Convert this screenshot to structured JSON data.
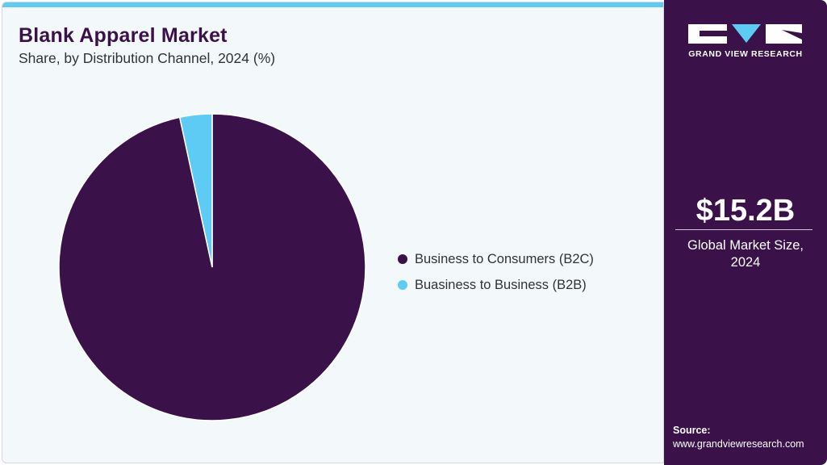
{
  "header": {
    "title": "Blank Apparel Market",
    "subtitle": "Share, by Distribution Channel, 2024 (%)"
  },
  "colors": {
    "b2c": "#3a1249",
    "b2b": "#5ecbf5",
    "accent_bar": "#5ecbf5",
    "sidebar_bg": "#3a1249"
  },
  "legend": [
    {
      "label": "Business to Consumers (B2C)",
      "color": "#3a1249"
    },
    {
      "label": "Buasiness to Business (B2B)",
      "color": "#5ecbf5"
    }
  ],
  "sidebar": {
    "logo_text": "GRAND VIEW RESEARCH",
    "market_value": "$15.2B",
    "market_label_line1": "Global Market Size,",
    "market_label_line2": "2024",
    "source_label": "Source:",
    "source_url": "www.grandviewresearch.com"
  },
  "chart_data": {
    "type": "pie",
    "title": "Blank Apparel Market",
    "subtitle": "Share, by Distribution Channel, 2024 (%)",
    "categories": [
      "Business to Consumers (B2C)",
      "Buasiness to Business (B2B)"
    ],
    "values": [
      96.6,
      3.4
    ],
    "legend_position": "right"
  }
}
